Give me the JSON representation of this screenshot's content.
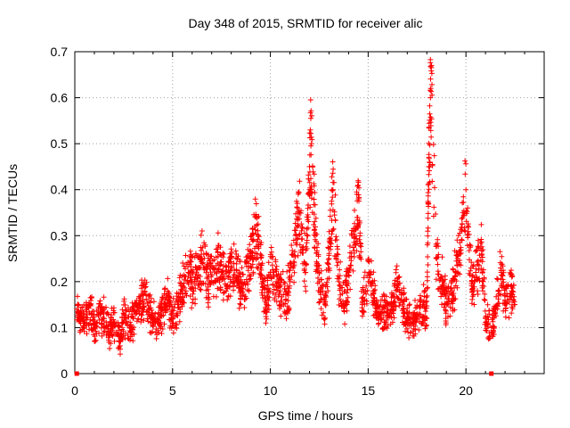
{
  "chart_data": {
    "type": "scatter",
    "title": "Day 348 of 2015, SRMTID for receiver alic",
    "xlabel": "GPS time / hours",
    "ylabel": "SRMTID / TECUs",
    "xlim": [
      0,
      24
    ],
    "ylim": [
      0,
      0.7
    ],
    "xticks": [
      0,
      5,
      10,
      15,
      20
    ],
    "yticks": [
      0,
      0.1,
      0.2,
      0.3,
      0.4,
      0.5,
      0.6,
      0.7
    ],
    "grid": true,
    "marker": "+",
    "color": "#ff0000",
    "series": [
      {
        "name": "SRMTID",
        "x": [
          0.1,
          0.3,
          0.5,
          0.8,
          1.0,
          1.3,
          1.5,
          1.8,
          2.0,
          2.3,
          2.5,
          2.8,
          3.0,
          3.3,
          3.5,
          3.8,
          4.0,
          4.3,
          4.5,
          4.8,
          5.0,
          5.3,
          5.5,
          5.8,
          6.0,
          6.3,
          6.5,
          6.8,
          7.0,
          7.3,
          7.5,
          7.8,
          8.0,
          8.3,
          8.5,
          8.8,
          9.0,
          9.2,
          9.4,
          9.6,
          9.8,
          10.0,
          10.3,
          10.5,
          10.8,
          11.0,
          11.3,
          11.5,
          11.8,
          12.0,
          12.1,
          12.3,
          12.5,
          12.8,
          13.0,
          13.2,
          13.5,
          13.8,
          14.0,
          14.3,
          14.5,
          14.7,
          15.0,
          15.3,
          15.5,
          15.8,
          16.0,
          16.3,
          16.5,
          16.8,
          17.0,
          17.3,
          17.5,
          17.8,
          18.0,
          18.1,
          18.2,
          18.5,
          18.8,
          19.0,
          19.3,
          19.5,
          19.7,
          20.0,
          20.3,
          20.5,
          20.8,
          21.0,
          21.3,
          21.5,
          21.8,
          22.0,
          22.3,
          22.5
        ],
        "y": [
          0.14,
          0.12,
          0.11,
          0.15,
          0.1,
          0.13,
          0.12,
          0.09,
          0.11,
          0.07,
          0.13,
          0.1,
          0.12,
          0.15,
          0.17,
          0.14,
          0.12,
          0.11,
          0.14,
          0.16,
          0.12,
          0.15,
          0.19,
          0.22,
          0.2,
          0.23,
          0.25,
          0.21,
          0.2,
          0.24,
          0.22,
          0.19,
          0.23,
          0.21,
          0.18,
          0.2,
          0.25,
          0.32,
          0.28,
          0.2,
          0.15,
          0.22,
          0.2,
          0.18,
          0.16,
          0.2,
          0.3,
          0.35,
          0.22,
          0.45,
          0.5,
          0.3,
          0.2,
          0.15,
          0.25,
          0.4,
          0.2,
          0.15,
          0.22,
          0.3,
          0.38,
          0.15,
          0.2,
          0.18,
          0.12,
          0.14,
          0.13,
          0.15,
          0.2,
          0.14,
          0.12,
          0.11,
          0.13,
          0.15,
          0.12,
          0.45,
          0.62,
          0.25,
          0.2,
          0.15,
          0.18,
          0.22,
          0.26,
          0.4,
          0.2,
          0.22,
          0.26,
          0.12,
          0.1,
          0.13,
          0.22,
          0.16,
          0.19,
          0.15
        ]
      },
      {
        "name": "gap",
        "x": [
          0.1,
          21.3
        ],
        "y": [
          0,
          0
        ]
      }
    ]
  }
}
